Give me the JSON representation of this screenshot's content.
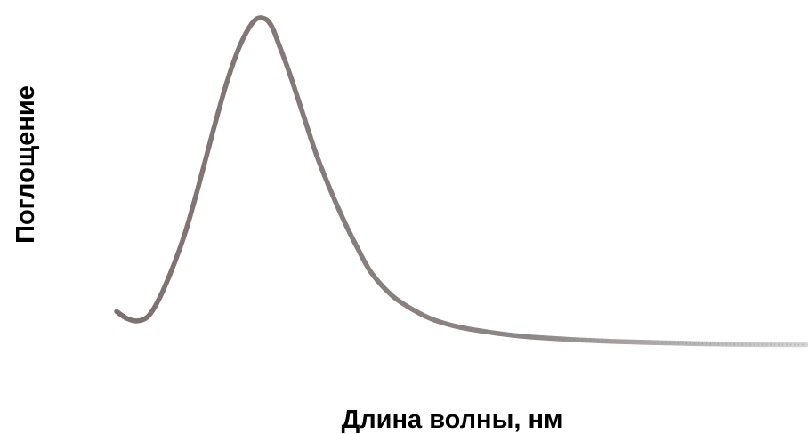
{
  "chart_data": {
    "type": "line",
    "xlabel": "Длина волны, нм",
    "ylabel": "Поглощение",
    "xlim": [
      0,
      100
    ],
    "ylim": [
      0,
      100
    ],
    "grid": false,
    "legend": "none",
    "series": [
      {
        "color": "#8a7f7a",
        "x": [
          0,
          1.5,
          3,
          4.5,
          6,
          8,
          10,
          12,
          14,
          16,
          18,
          20,
          21.5,
          22.5,
          23.5,
          25,
          27,
          29,
          31,
          33,
          35,
          37,
          40,
          43,
          46,
          50,
          55,
          60,
          70,
          80,
          90,
          100
        ],
        "y": [
          15,
          13,
          12.3,
          13.5,
          18,
          27,
          38,
          52,
          67,
          81,
          92,
          98.7,
          99.2,
          97,
          92,
          84,
          72,
          60,
          50,
          41,
          33,
          26,
          19.5,
          15.5,
          12.6,
          10.4,
          8.8,
          7.7,
          6.6,
          6.0,
          5.6,
          5.5
        ]
      }
    ]
  }
}
